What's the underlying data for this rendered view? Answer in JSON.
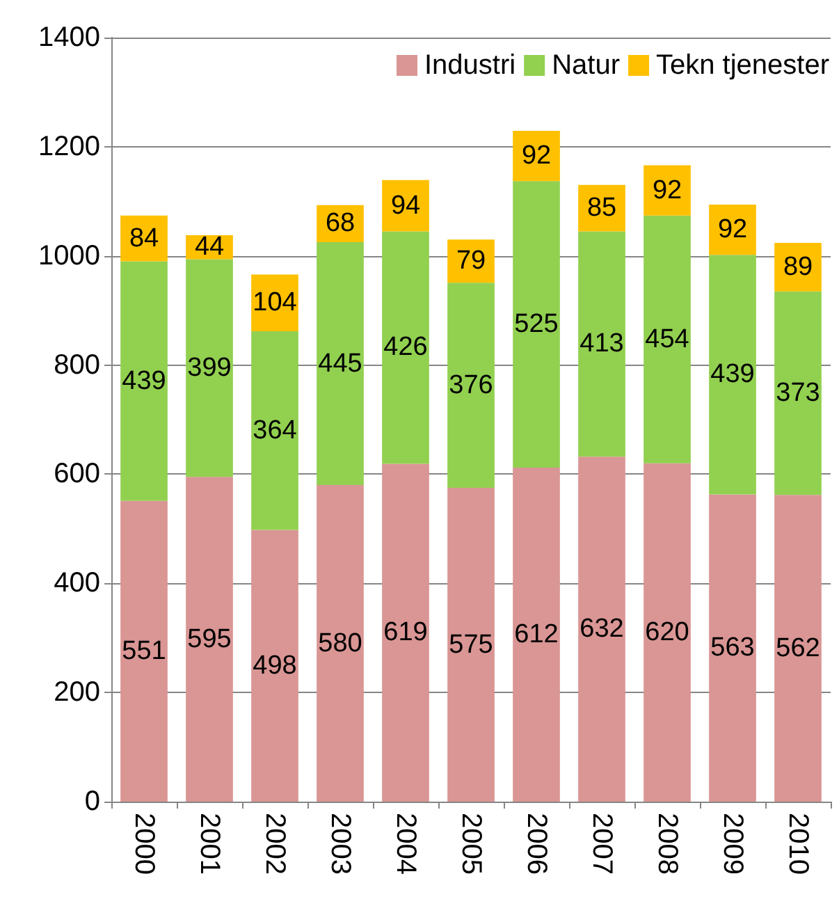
{
  "chart_data": {
    "type": "bar",
    "stacked": true,
    "categories": [
      "2000",
      "2001",
      "2002",
      "2003",
      "2004",
      "2005",
      "2006",
      "2007",
      "2008",
      "2009",
      "2010"
    ],
    "series": [
      {
        "name": "Industri",
        "color": "#d99694",
        "values": [
          551,
          595,
          498,
          580,
          619,
          575,
          612,
          632,
          620,
          563,
          562
        ]
      },
      {
        "name": "Natur",
        "color": "#92d050",
        "values": [
          439,
          399,
          364,
          445,
          426,
          376,
          525,
          413,
          454,
          439,
          373
        ]
      },
      {
        "name": "Tekn tjenester",
        "color": "#ffc000",
        "values": [
          84,
          44,
          104,
          68,
          94,
          79,
          92,
          85,
          92,
          92,
          89
        ]
      }
    ],
    "ylim": [
      0,
      1400
    ],
    "yticks": [
      0,
      200,
      400,
      600,
      800,
      1000,
      1200,
      1400
    ],
    "grid": "y",
    "legend": "top right",
    "data_labels": true
  }
}
